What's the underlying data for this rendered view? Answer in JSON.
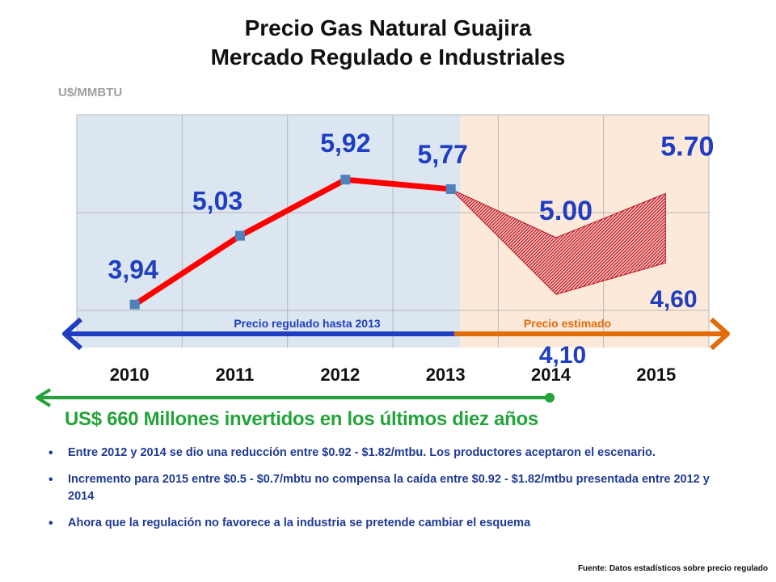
{
  "title": {
    "line1": "Precio Gas Natural Guajira",
    "line2": "Mercado Regulado e Industriales"
  },
  "unit_label": "U$/MMBTU",
  "chart_data": {
    "type": "line",
    "categories": [
      "2010",
      "2011",
      "2012",
      "2013",
      "2014",
      "2015"
    ],
    "series": [
      {
        "name": "Precio regulado hasta 2013",
        "points": [
          {
            "x": "2010",
            "y": 3.94,
            "label": "3,94"
          },
          {
            "x": "2011",
            "y": 5.03,
            "label": "5,03"
          },
          {
            "x": "2012",
            "y": 5.92,
            "label": "5,92"
          },
          {
            "x": "2013",
            "y": 5.77,
            "label": "5,77"
          }
        ],
        "color": "#ff0000",
        "marker_color": "#4f81bd"
      }
    ],
    "estimated_band": {
      "name": "Precio estimado",
      "start": {
        "x": "2013",
        "y": 5.77
      },
      "upper": [
        {
          "x": "2014",
          "y": 5.0,
          "label": "5.00"
        },
        {
          "x": "2015",
          "y": 5.7,
          "label": "5.70"
        }
      ],
      "lower": [
        {
          "x": "2014",
          "y": 4.1,
          "label": "4,10"
        },
        {
          "x": "2015",
          "y": 4.6,
          "label": "4,60"
        }
      ],
      "color": "#c0101a"
    },
    "ylim": [
      3,
      7
    ],
    "grid": true,
    "regions": [
      {
        "label": "Precio regulado hasta 2013",
        "from": "2010",
        "to": "2013",
        "color": "#dce6f1",
        "arrow_color": "#1f3ec1"
      },
      {
        "label": "Precio estimado",
        "from": "2013",
        "to": "2015",
        "color": "#fde9d9",
        "arrow_color": "#e36c0a"
      }
    ]
  },
  "investment_text": "US$ 660 Millones invertidos en los últimos diez años",
  "bullets": [
    "Entre 2012 y 2014 se dio una reducción entre $0.92 - $1.82/mtbu. Los productores aceptaron el escenario.",
    "Incremento para 2015 entre $0.5 - $0.7/mbtu no compensa la caída entre $0.92 - $1.82/mtbu presentada entre 2012 y 2014",
    "Ahora que la regulación no favorece a la industria se pretende cambiar el esquema"
  ],
  "source": "Fuente: Datos estadísticos sobre precio regulado"
}
